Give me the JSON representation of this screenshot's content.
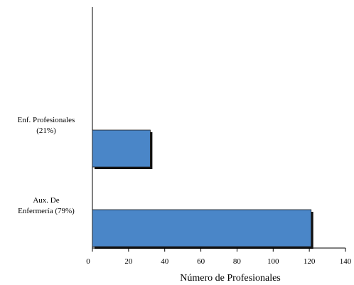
{
  "chart_data": {
    "type": "bar",
    "orientation": "horizontal",
    "categories": [
      {
        "lines": [
          "Enf. Profesionales",
          "(21%)"
        ]
      },
      {
        "lines": [
          "Aux. De",
          "Enfermería (79%)"
        ]
      }
    ],
    "values": [
      32,
      121
    ],
    "xlabel": "Número de Profesionales",
    "xlim": [
      0,
      140
    ],
    "xticks": [
      "0",
      "20",
      "40",
      "60",
      "80",
      "100",
      "120",
      "140"
    ],
    "grid": false,
    "bar_color": "#4a86c8",
    "shadow_color": "#111111"
  }
}
